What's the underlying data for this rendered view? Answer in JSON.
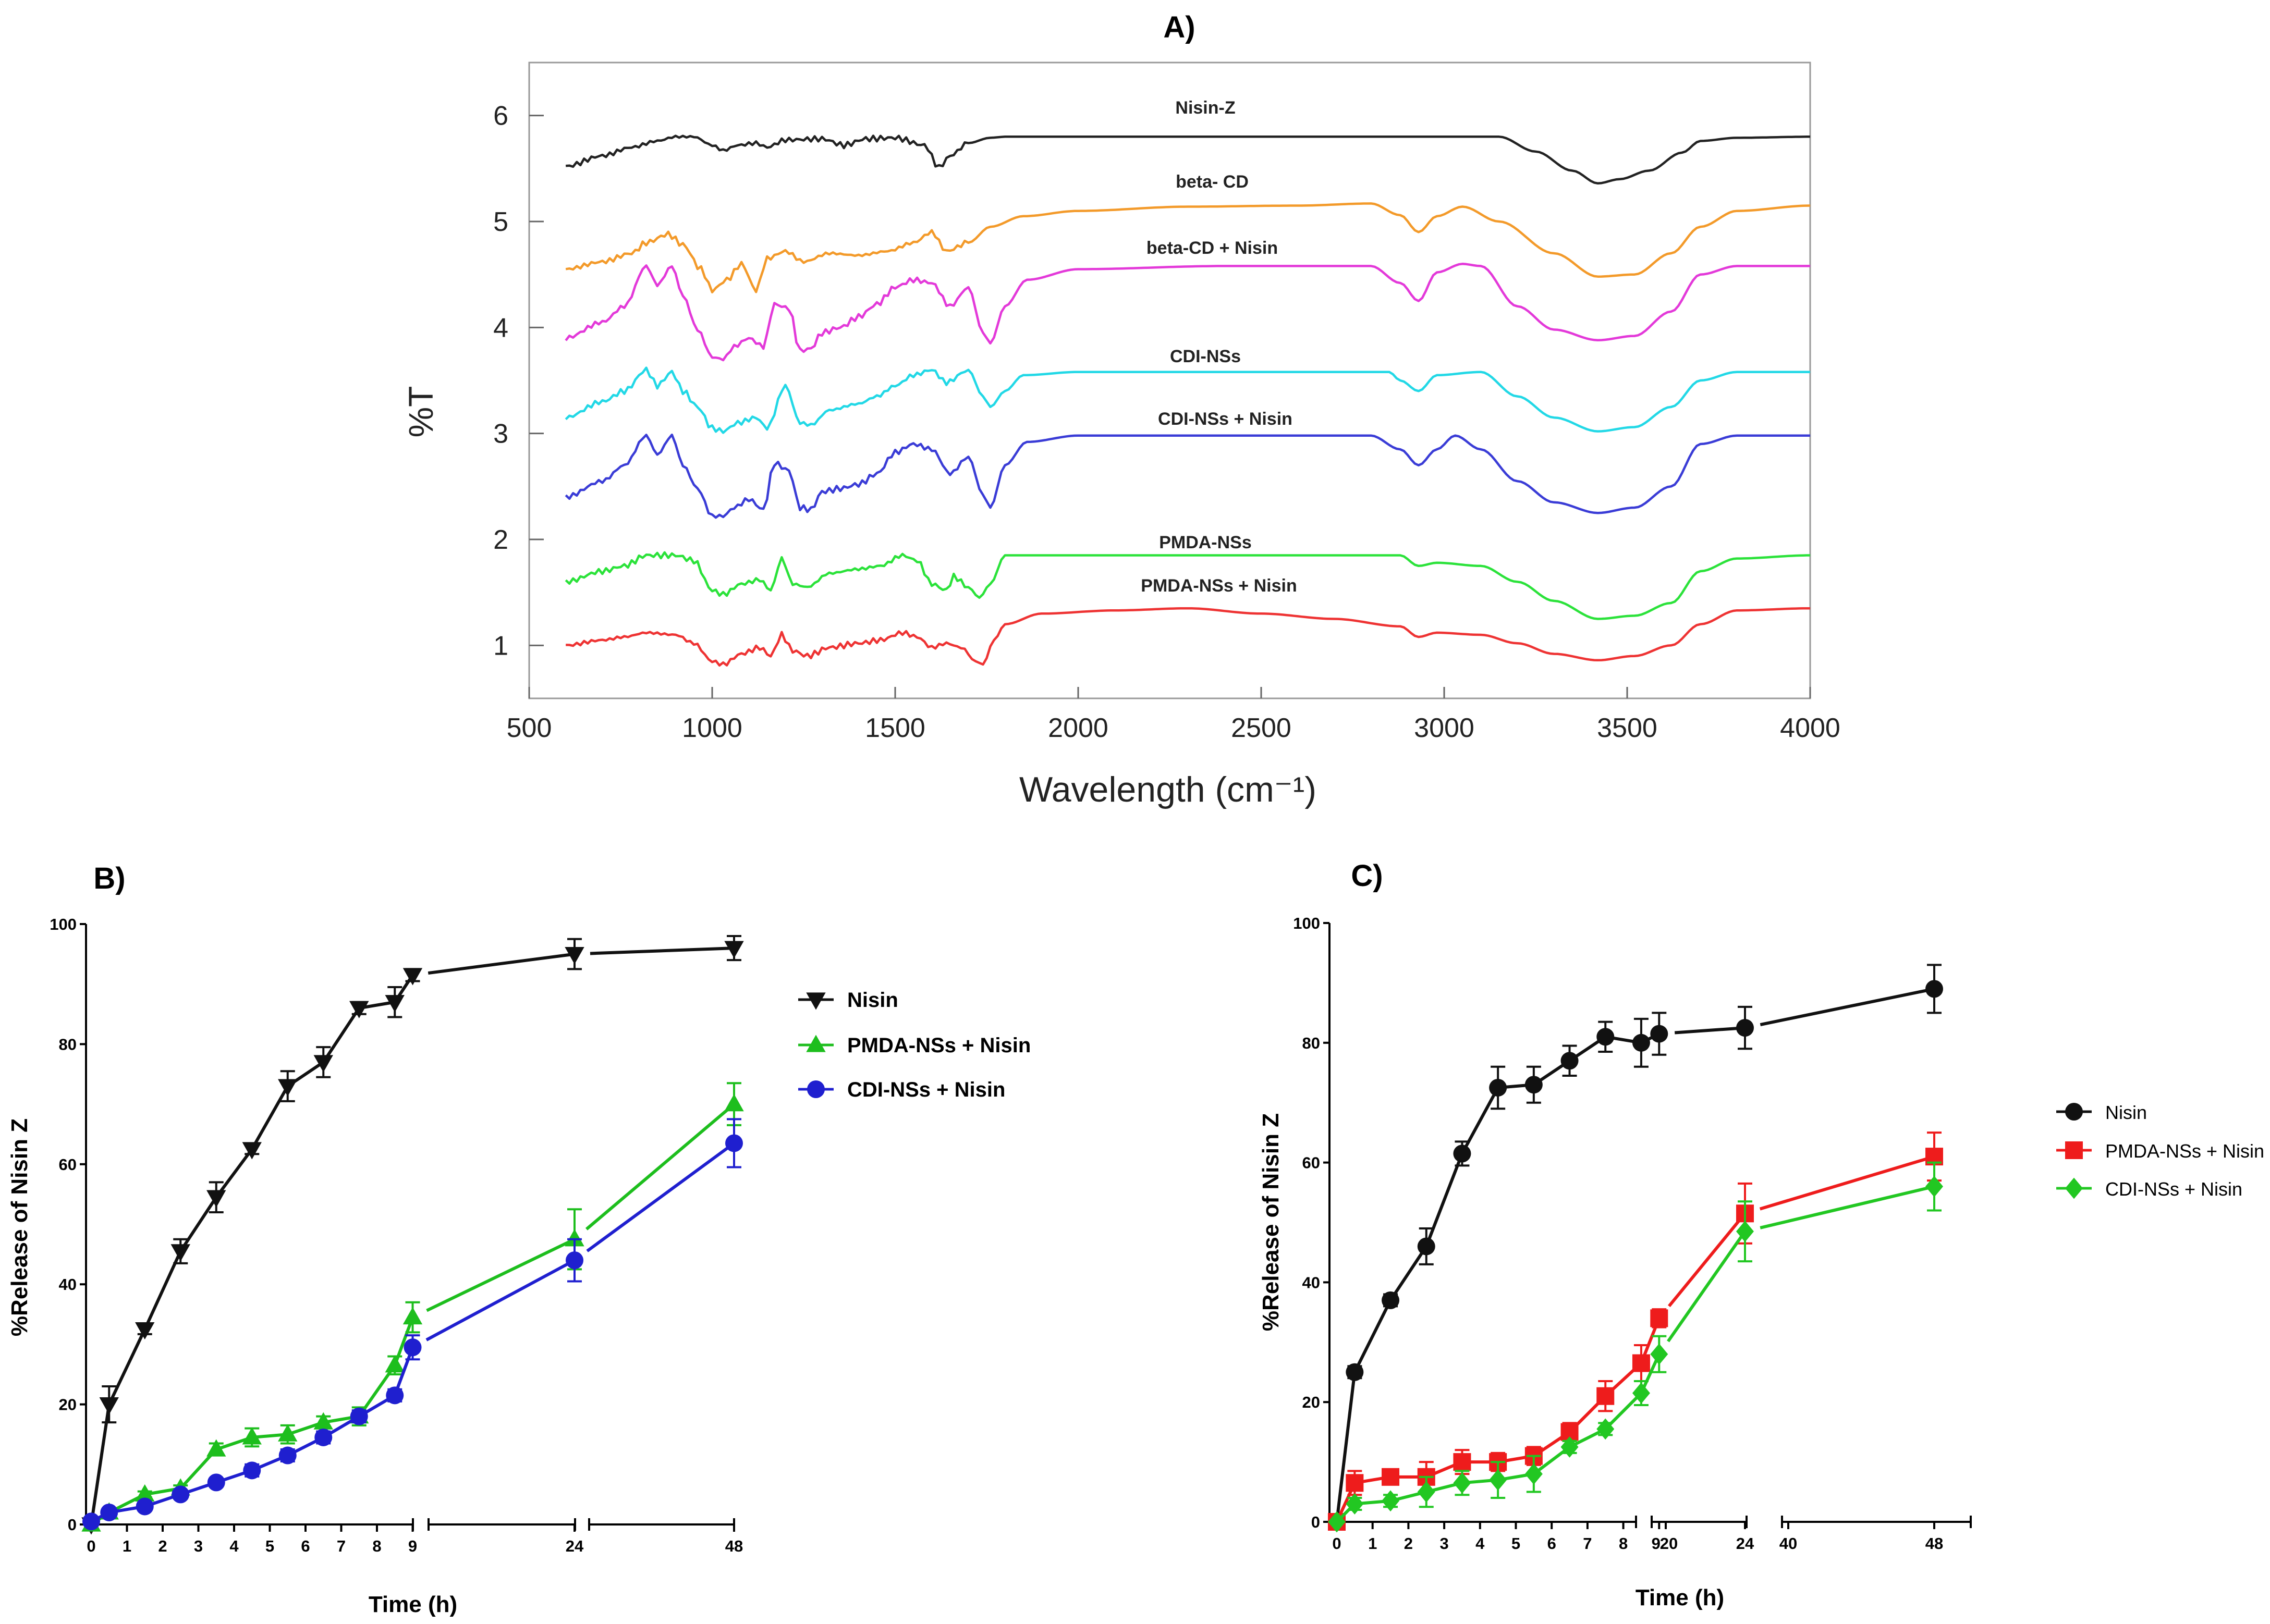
{
  "chart_data": [
    {
      "panel": "A)",
      "type": "line",
      "title": "",
      "xlabel": "Wavelength (cm⁻¹)",
      "ylabel": "%T",
      "xlim": [
        500,
        4000
      ],
      "ylim": [
        0.5,
        6.5
      ],
      "xticks": [
        "500",
        "1000",
        "1500",
        "2000",
        "2500",
        "3000",
        "3500",
        "4000"
      ],
      "yticks": [
        "1",
        "2",
        "3",
        "4",
        "5",
        "6"
      ],
      "series": [
        {
          "name": "Nisin-Z",
          "color": "#222222",
          "x": [
            600,
            700,
            780,
            850,
            900,
            950,
            1000,
            1030,
            1070,
            1120,
            1150,
            1200,
            1300,
            1360,
            1420,
            1500,
            1580,
            1620,
            1650,
            1700,
            1760,
            1800,
            2000,
            2500,
            2900,
            3150,
            3250,
            3350,
            3420,
            3480,
            3560,
            3650,
            3700,
            3800,
            4000
          ],
          "y": [
            5.52,
            5.62,
            5.7,
            5.76,
            5.8,
            5.8,
            5.72,
            5.67,
            5.72,
            5.74,
            5.7,
            5.77,
            5.78,
            5.72,
            5.78,
            5.79,
            5.72,
            5.51,
            5.62,
            5.74,
            5.79,
            5.8,
            5.8,
            5.8,
            5.8,
            5.8,
            5.66,
            5.48,
            5.36,
            5.4,
            5.48,
            5.65,
            5.76,
            5.79,
            5.8
          ]
        },
        {
          "name": "beta- CD",
          "color": "#F39A2A",
          "x": [
            600,
            700,
            780,
            820,
            880,
            920,
            970,
            1000,
            1040,
            1080,
            1120,
            1150,
            1200,
            1250,
            1320,
            1400,
            1480,
            1550,
            1600,
            1640,
            1700,
            1760,
            1850,
            2000,
            2300,
            2600,
            2800,
            2880,
            2930,
            2980,
            3050,
            3150,
            3300,
            3420,
            3520,
            3620,
            3700,
            3800,
            4000
          ],
          "y": [
            4.55,
            4.62,
            4.7,
            4.8,
            4.88,
            4.78,
            4.55,
            4.35,
            4.45,
            4.6,
            4.35,
            4.65,
            4.72,
            4.62,
            4.7,
            4.68,
            4.72,
            4.8,
            4.9,
            4.72,
            4.8,
            4.95,
            5.05,
            5.1,
            5.14,
            5.15,
            5.17,
            5.06,
            4.9,
            5.05,
            5.14,
            5.0,
            4.7,
            4.48,
            4.5,
            4.7,
            4.95,
            5.1,
            5.15
          ]
        },
        {
          "name": "beta-CD + Nisin",
          "color": "#E339D9",
          "x": [
            600,
            700,
            760,
            820,
            850,
            890,
            920,
            960,
            1000,
            1030,
            1060,
            1100,
            1140,
            1170,
            1210,
            1240,
            1270,
            1300,
            1350,
            1400,
            1450,
            1500,
            1550,
            1600,
            1650,
            1700,
            1740,
            1760,
            1800,
            1860,
            2000,
            2400,
            2800,
            2880,
            2930,
            2980,
            3050,
            3100,
            3200,
            3300,
            3420,
            3520,
            3620,
            3700,
            3800,
            4000
          ],
          "y": [
            3.9,
            4.05,
            4.2,
            4.58,
            4.4,
            4.58,
            4.3,
            3.98,
            3.72,
            3.7,
            3.82,
            3.9,
            3.82,
            4.22,
            4.18,
            3.78,
            3.8,
            3.95,
            4.0,
            4.1,
            4.22,
            4.38,
            4.45,
            4.42,
            4.2,
            4.38,
            3.95,
            3.85,
            4.2,
            4.45,
            4.55,
            4.58,
            4.58,
            4.42,
            4.25,
            4.52,
            4.6,
            4.58,
            4.2,
            3.98,
            3.88,
            3.92,
            4.15,
            4.5,
            4.58,
            4.58
          ]
        },
        {
          "name": "CDI-NSs",
          "color": "#22D8E6",
          "x": [
            600,
            700,
            760,
            820,
            850,
            890,
            920,
            960,
            1000,
            1030,
            1070,
            1120,
            1150,
            1200,
            1240,
            1270,
            1320,
            1400,
            1450,
            1500,
            1550,
            1600,
            1640,
            1700,
            1740,
            1760,
            1800,
            1850,
            2000,
            2500,
            2850,
            2880,
            2930,
            2980,
            3100,
            3200,
            3300,
            3420,
            3520,
            3620,
            3700,
            3800,
            4000
          ],
          "y": [
            3.15,
            3.3,
            3.4,
            3.6,
            3.45,
            3.58,
            3.4,
            3.25,
            3.05,
            3.02,
            3.1,
            3.15,
            3.05,
            3.45,
            3.1,
            3.08,
            3.22,
            3.28,
            3.35,
            3.45,
            3.55,
            3.6,
            3.48,
            3.6,
            3.35,
            3.25,
            3.4,
            3.55,
            3.58,
            3.58,
            3.58,
            3.5,
            3.4,
            3.55,
            3.58,
            3.35,
            3.15,
            3.02,
            3.06,
            3.25,
            3.5,
            3.58,
            3.58
          ]
        },
        {
          "name": "CDI-NSs + Nisin",
          "color": "#3A3CD6",
          "x": [
            600,
            700,
            760,
            820,
            850,
            890,
            920,
            960,
            1000,
            1030,
            1060,
            1100,
            1140,
            1170,
            1210,
            1240,
            1270,
            1300,
            1350,
            1400,
            1450,
            1500,
            1550,
            1600,
            1650,
            1700,
            1740,
            1760,
            1800,
            1860,
            2000,
            2400,
            2800,
            2880,
            2930,
            2980,
            3030,
            3100,
            3200,
            3300,
            3420,
            3520,
            3620,
            3700,
            3800,
            4000
          ],
          "y": [
            2.4,
            2.55,
            2.7,
            2.98,
            2.8,
            2.98,
            2.7,
            2.48,
            2.22,
            2.22,
            2.3,
            2.38,
            2.28,
            2.72,
            2.65,
            2.3,
            2.28,
            2.45,
            2.48,
            2.52,
            2.62,
            2.82,
            2.9,
            2.85,
            2.62,
            2.78,
            2.42,
            2.3,
            2.7,
            2.92,
            2.98,
            2.98,
            2.98,
            2.85,
            2.7,
            2.85,
            2.98,
            2.85,
            2.55,
            2.35,
            2.25,
            2.3,
            2.5,
            2.9,
            2.98,
            2.98
          ]
        },
        {
          "name": "PMDA-NSs",
          "color": "#2BE23A",
          "x": [
            600,
            700,
            760,
            820,
            900,
            950,
            1000,
            1030,
            1080,
            1130,
            1160,
            1190,
            1220,
            1260,
            1320,
            1400,
            1460,
            1520,
            1560,
            1600,
            1640,
            1660,
            1700,
            1730,
            1760,
            1800,
            2000,
            2500,
            2880,
            2930,
            2980,
            3100,
            3200,
            3300,
            3420,
            3520,
            3620,
            3700,
            3800,
            4000
          ],
          "y": [
            1.6,
            1.7,
            1.75,
            1.85,
            1.85,
            1.8,
            1.52,
            1.48,
            1.58,
            1.62,
            1.52,
            1.82,
            1.58,
            1.55,
            1.68,
            1.72,
            1.75,
            1.85,
            1.8,
            1.58,
            1.52,
            1.65,
            1.55,
            1.45,
            1.58,
            1.85,
            1.85,
            1.85,
            1.85,
            1.75,
            1.78,
            1.75,
            1.6,
            1.42,
            1.25,
            1.28,
            1.4,
            1.7,
            1.82,
            1.85
          ]
        },
        {
          "name": "PMDA-NSs + Nisin",
          "color": "#EE3333",
          "x": [
            600,
            700,
            760,
            820,
            900,
            950,
            1000,
            1030,
            1080,
            1130,
            1160,
            1190,
            1220,
            1260,
            1320,
            1400,
            1460,
            1520,
            1560,
            1600,
            1640,
            1680,
            1720,
            1740,
            1770,
            1800,
            1900,
            2100,
            2300,
            2500,
            2700,
            2880,
            2930,
            2980,
            3100,
            3200,
            3300,
            3420,
            3520,
            3620,
            3700,
            3800,
            4000
          ],
          "y": [
            1.0,
            1.05,
            1.08,
            1.12,
            1.1,
            1.02,
            0.85,
            0.82,
            0.92,
            0.98,
            0.9,
            1.1,
            0.95,
            0.9,
            0.98,
            1.02,
            1.05,
            1.12,
            1.08,
            0.98,
            1.02,
            0.98,
            0.85,
            0.82,
            1.05,
            1.2,
            1.3,
            1.33,
            1.35,
            1.3,
            1.25,
            1.18,
            1.08,
            1.12,
            1.1,
            1.02,
            0.92,
            0.86,
            0.9,
            1.0,
            1.2,
            1.33,
            1.35
          ]
        }
      ],
      "annotations": [
        "Nisin-Z",
        "beta- CD",
        "beta-CD + Nisin",
        "CDI-NSs",
        "CDI-NSs + Nisin",
        "PMDA-NSs",
        "PMDA-NSs + Nisin"
      ]
    },
    {
      "panel": "B)",
      "type": "line",
      "title": "",
      "xlabel": "Time (h)",
      "ylabel": "%Release of Nisin Z",
      "ylim": [
        0,
        100
      ],
      "yticks": [
        "0",
        "20",
        "40",
        "60",
        "80",
        "100"
      ],
      "xticks": [
        "0",
        "1",
        "2",
        "3",
        "4",
        "5",
        "6",
        "7",
        "8",
        "9",
        "24",
        "48"
      ],
      "legend": "right",
      "series": [
        {
          "name": "Nisin",
          "color": "#111111",
          "marker": "triangle-down",
          "x": [
            0,
            0.5,
            1.5,
            2.5,
            3.5,
            4.5,
            5.5,
            6.5,
            7.5,
            8.5,
            9,
            24,
            48
          ],
          "y": [
            0,
            20,
            32.5,
            45.5,
            54.5,
            62.5,
            73,
            77,
            86,
            87,
            91.5,
            95,
            96
          ],
          "err": [
            0,
            3,
            0.8,
            2,
            2.5,
            0.8,
            2.5,
            2.5,
            1,
            2.5,
            1,
            2.5,
            2
          ]
        },
        {
          "name": "PMDA-NSs + Nisin",
          "color": "#1DBE1D",
          "marker": "triangle-up",
          "x": [
            0,
            0.5,
            1.5,
            2.5,
            3.5,
            4.5,
            5.5,
            6.5,
            7.5,
            8.5,
            9,
            24,
            48
          ],
          "y": [
            0,
            2,
            5,
            6,
            12.5,
            14.5,
            15,
            17,
            18,
            26.5,
            34.5,
            47.5,
            70
          ],
          "err": [
            0,
            0.5,
            0.5,
            0.5,
            1,
            1.5,
            1.5,
            1,
            1.5,
            1.5,
            2.5,
            5,
            3.5
          ]
        },
        {
          "name": "CDI-NSs + Nisin",
          "color": "#1F1FCF",
          "marker": "circle",
          "x": [
            0,
            0.5,
            1.5,
            2.5,
            3.5,
            4.5,
            5.5,
            6.5,
            7.5,
            8.5,
            9,
            24,
            48
          ],
          "y": [
            0.5,
            2,
            3,
            5,
            7,
            9,
            11.5,
            14.5,
            18,
            21.5,
            29.5,
            44,
            63.5
          ],
          "err": [
            0,
            0.5,
            0.5,
            0.5,
            0.5,
            1,
            1,
            1,
            1,
            1,
            2,
            3.5,
            4
          ]
        }
      ]
    },
    {
      "panel": "C)",
      "type": "line",
      "title": "",
      "xlabel": "Time (h)",
      "ylabel": "%Release of Nisin Z",
      "ylim": [
        0,
        100
      ],
      "yticks": [
        "0",
        "20",
        "40",
        "60",
        "80",
        "100"
      ],
      "xticks": [
        "0",
        "1",
        "2",
        "3",
        "4",
        "5",
        "6",
        "7",
        "8",
        "9",
        "20",
        "24",
        "40",
        "48"
      ],
      "legend": "right",
      "series": [
        {
          "name": "Nisin",
          "color": "#111111",
          "marker": "circle",
          "x": [
            0,
            0.5,
            1.5,
            2.5,
            3.5,
            4.5,
            5.5,
            6.5,
            7.5,
            8.5,
            9,
            24,
            48
          ],
          "y": [
            0,
            25,
            37,
            46,
            61.5,
            72.5,
            73,
            77,
            81,
            80,
            81.5,
            82.5,
            89
          ],
          "err": [
            0,
            1,
            1,
            3,
            2,
            3.5,
            3,
            2.5,
            2.5,
            4,
            3.5,
            3.5,
            4
          ]
        },
        {
          "name": "PMDA-NSs + Nisin",
          "color": "#EE1C1C",
          "marker": "square",
          "x": [
            0,
            0.5,
            1.5,
            2.5,
            3.5,
            4.5,
            5.5,
            6.5,
            7.5,
            8.5,
            9,
            24,
            48
          ],
          "y": [
            0,
            6.5,
            7.5,
            7.5,
            10,
            10,
            11,
            15,
            21,
            26.5,
            34,
            51.5,
            61
          ],
          "err": [
            0,
            2,
            1,
            2.5,
            2,
            1.5,
            1.5,
            1.5,
            2.5,
            3,
            1.5,
            5,
            4
          ]
        },
        {
          "name": "CDI-NSs + Nisin",
          "color": "#22C722",
          "marker": "diamond",
          "x": [
            0,
            0.5,
            1.5,
            2.5,
            3.5,
            4.5,
            5.5,
            6.5,
            7.5,
            8.5,
            9,
            24,
            48
          ],
          "y": [
            0,
            3,
            3.5,
            5,
            6.5,
            7,
            8,
            12.5,
            15.5,
            21.5,
            28,
            48.5,
            56
          ],
          "err": [
            0,
            1,
            1,
            2.5,
            2,
            3,
            3,
            1,
            1,
            2,
            3,
            5,
            4
          ]
        }
      ]
    }
  ]
}
